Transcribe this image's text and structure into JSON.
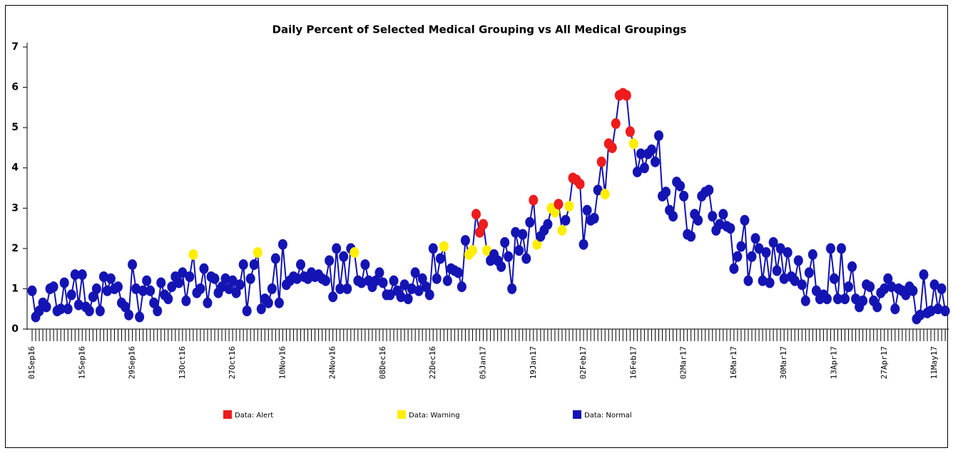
{
  "chart_data": {
    "type": "line",
    "title": "Daily Percent of Selected Medical Grouping vs All Medical Groupings",
    "line_color": "#1010b0",
    "legend": [
      {
        "name": "Data: Alert",
        "color": "#ee1c1c"
      },
      {
        "name": "Data: Warning",
        "color": "#ffee00"
      },
      {
        "name": "Data: Normal",
        "color": "#1414b4"
      }
    ],
    "ylim": [
      0,
      7
    ],
    "yticks": [
      0,
      1,
      2,
      3,
      4,
      5,
      6,
      7
    ],
    "categories": [
      "01Sep16",
      null,
      null,
      null,
      null,
      null,
      null,
      null,
      null,
      null,
      null,
      null,
      null,
      null,
      "15Sep16",
      null,
      null,
      null,
      null,
      null,
      null,
      null,
      null,
      null,
      null,
      null,
      null,
      null,
      "29Sep16",
      null,
      null,
      null,
      null,
      null,
      null,
      null,
      null,
      null,
      null,
      null,
      null,
      null,
      "13Oct16",
      null,
      null,
      null,
      null,
      null,
      null,
      null,
      null,
      null,
      null,
      null,
      null,
      null,
      "27Oct16",
      null,
      null,
      null,
      null,
      null,
      null,
      null,
      null,
      null,
      null,
      null,
      null,
      null,
      "10Nov16",
      null,
      null,
      null,
      null,
      null,
      null,
      null,
      null,
      null,
      null,
      null,
      null,
      null,
      "24Nov16",
      null,
      null,
      null,
      null,
      null,
      null,
      null,
      null,
      null,
      null,
      null,
      null,
      null,
      "08Dec16",
      null,
      null,
      null,
      null,
      null,
      null,
      null,
      null,
      null,
      null,
      null,
      null,
      null,
      "22Dec16",
      null,
      null,
      null,
      null,
      null,
      null,
      null,
      null,
      null,
      null,
      null,
      null,
      null,
      "05Jan17",
      null,
      null,
      null,
      null,
      null,
      null,
      null,
      null,
      null,
      null,
      null,
      null,
      null,
      "19Jan17",
      null,
      null,
      null,
      null,
      null,
      null,
      null,
      null,
      null,
      null,
      null,
      null,
      null,
      "02Feb17",
      null,
      null,
      null,
      null,
      null,
      null,
      null,
      null,
      null,
      null,
      null,
      null,
      null,
      "16Feb17",
      null,
      null,
      null,
      null,
      null,
      null,
      null,
      null,
      null,
      null,
      null,
      null,
      null,
      "02Mar17",
      null,
      null,
      null,
      null,
      null,
      null,
      null,
      null,
      null,
      null,
      null,
      null,
      null,
      "16Mar17",
      null,
      null,
      null,
      null,
      null,
      null,
      null,
      null,
      null,
      null,
      null,
      null,
      null,
      "30Mar17",
      null,
      null,
      null,
      null,
      null,
      null,
      null,
      null,
      null,
      null,
      null,
      null,
      null,
      "13Apr17",
      null,
      null,
      null,
      null,
      null,
      null,
      null,
      null,
      null,
      null,
      null,
      null,
      null,
      "27Apr17",
      null,
      null,
      null,
      null,
      null,
      null,
      null,
      null,
      null,
      null,
      null,
      null,
      null,
      "11May17",
      null,
      null,
      null
    ],
    "values": [
      0.95,
      0.3,
      0.45,
      0.65,
      0.55,
      1.0,
      1.05,
      0.45,
      0.5,
      1.15,
      0.5,
      0.85,
      1.35,
      0.6,
      1.35,
      0.55,
      0.45,
      0.8,
      1.0,
      0.45,
      1.3,
      0.95,
      1.25,
      1.0,
      1.05,
      0.65,
      0.55,
      0.35,
      1.6,
      1.0,
      0.3,
      0.95,
      1.2,
      0.95,
      0.65,
      0.45,
      1.15,
      0.85,
      0.75,
      1.05,
      1.3,
      1.15,
      1.4,
      0.7,
      1.3,
      1.85,
      0.9,
      1.0,
      1.5,
      0.65,
      1.3,
      1.25,
      0.9,
      1.05,
      1.25,
      1.0,
      1.2,
      0.9,
      1.1,
      1.6,
      0.45,
      1.25,
      1.6,
      1.9,
      0.5,
      0.75,
      0.65,
      1.0,
      1.75,
      0.65,
      2.1,
      1.1,
      1.2,
      1.3,
      1.25,
      1.6,
      1.3,
      1.25,
      1.4,
      1.3,
      1.35,
      1.25,
      1.2,
      1.7,
      0.8,
      2.0,
      1.0,
      1.8,
      1.0,
      2.0,
      1.9,
      1.2,
      1.15,
      1.6,
      1.2,
      1.05,
      1.2,
      1.4,
      1.15,
      0.85,
      0.85,
      1.2,
      0.95,
      0.8,
      1.1,
      0.75,
      1.0,
      1.4,
      0.95,
      1.25,
      1.05,
      0.85,
      2.0,
      1.25,
      1.75,
      2.05,
      1.2,
      1.5,
      1.45,
      1.4,
      1.05,
      2.2,
      1.85,
      1.95,
      2.85,
      2.4,
      2.6,
      1.95,
      1.7,
      1.85,
      1.7,
      1.55,
      2.15,
      1.8,
      1.0,
      2.4,
      1.95,
      2.35,
      1.75,
      2.65,
      3.2,
      2.1,
      2.3,
      2.45,
      2.6,
      3.0,
      2.9,
      3.1,
      2.45,
      2.7,
      3.05,
      3.75,
      3.7,
      3.6,
      2.1,
      2.95,
      2.7,
      2.75,
      3.45,
      4.15,
      3.35,
      4.6,
      4.5,
      5.1,
      5.8,
      5.85,
      5.8,
      4.9,
      4.6,
      3.9,
      4.35,
      4.0,
      4.35,
      4.45,
      4.15,
      4.8,
      3.3,
      3.4,
      2.95,
      2.8,
      3.65,
      3.55,
      3.3,
      2.35,
      2.3,
      2.85,
      2.7,
      3.3,
      3.4,
      3.45,
      2.8,
      2.45,
      2.6,
      2.85,
      2.55,
      2.5,
      1.5,
      1.8,
      2.05,
      2.7,
      1.2,
      1.8,
      2.25,
      2.0,
      1.2,
      1.9,
      1.15,
      2.15,
      1.45,
      2.0,
      1.25,
      1.9,
      1.3,
      1.2,
      1.7,
      1.1,
      0.7,
      1.4,
      1.85,
      0.95,
      0.75,
      0.85,
      0.75,
      2.0,
      1.25,
      0.75,
      2.0,
      0.75,
      1.05,
      1.55,
      0.75,
      0.55,
      0.7,
      1.1,
      1.05,
      0.7,
      0.55,
      0.9,
      1.0,
      1.25,
      1.05,
      0.5,
      1.0,
      0.95,
      0.85,
      1.05,
      0.95,
      0.25,
      0.35,
      1.35,
      0.4,
      0.45,
      1.1,
      0.5,
      1.0,
      0.45
    ],
    "point_status": [
      2,
      2,
      2,
      2,
      2,
      2,
      2,
      2,
      2,
      2,
      2,
      2,
      2,
      2,
      2,
      2,
      2,
      2,
      2,
      2,
      2,
      2,
      2,
      2,
      2,
      2,
      2,
      2,
      2,
      2,
      2,
      2,
      2,
      2,
      2,
      2,
      2,
      2,
      2,
      2,
      2,
      2,
      2,
      2,
      2,
      1,
      2,
      2,
      2,
      2,
      2,
      2,
      2,
      2,
      2,
      2,
      2,
      2,
      2,
      2,
      2,
      2,
      2,
      1,
      2,
      2,
      2,
      2,
      2,
      2,
      2,
      2,
      2,
      2,
      2,
      2,
      2,
      2,
      2,
      2,
      2,
      2,
      2,
      2,
      2,
      2,
      2,
      2,
      2,
      2,
      1,
      2,
      2,
      2,
      2,
      2,
      2,
      2,
      2,
      2,
      2,
      2,
      2,
      2,
      2,
      2,
      2,
      2,
      2,
      2,
      2,
      2,
      2,
      2,
      2,
      1,
      2,
      2,
      2,
      2,
      2,
      2,
      1,
      1,
      0,
      0,
      0,
      1,
      2,
      2,
      2,
      2,
      2,
      2,
      2,
      2,
      2,
      2,
      2,
      2,
      0,
      1,
      2,
      2,
      2,
      1,
      1,
      0,
      1,
      2,
      1,
      0,
      0,
      0,
      2,
      2,
      2,
      2,
      2,
      0,
      1,
      0,
      0,
      0,
      0,
      0,
      0,
      0,
      1,
      2,
      2,
      2,
      2,
      2,
      2,
      2,
      2,
      2,
      2,
      2,
      2,
      2,
      2,
      2,
      2,
      2,
      2,
      2,
      2,
      2,
      2,
      2,
      2,
      2,
      2,
      2,
      2,
      2,
      2,
      2,
      2,
      2,
      2,
      2,
      2,
      2,
      2,
      2,
      2,
      2,
      2,
      2,
      2,
      2,
      2,
      2,
      2,
      2,
      2,
      2,
      2,
      2,
      2,
      2,
      2,
      2,
      2,
      2,
      2,
      2,
      2,
      2,
      2,
      2,
      2,
      2,
      2,
      2,
      2,
      2,
      2,
      2,
      2,
      2,
      2,
      2,
      2,
      2,
      2,
      2,
      2,
      2,
      2,
      2,
      2,
      2
    ]
  }
}
